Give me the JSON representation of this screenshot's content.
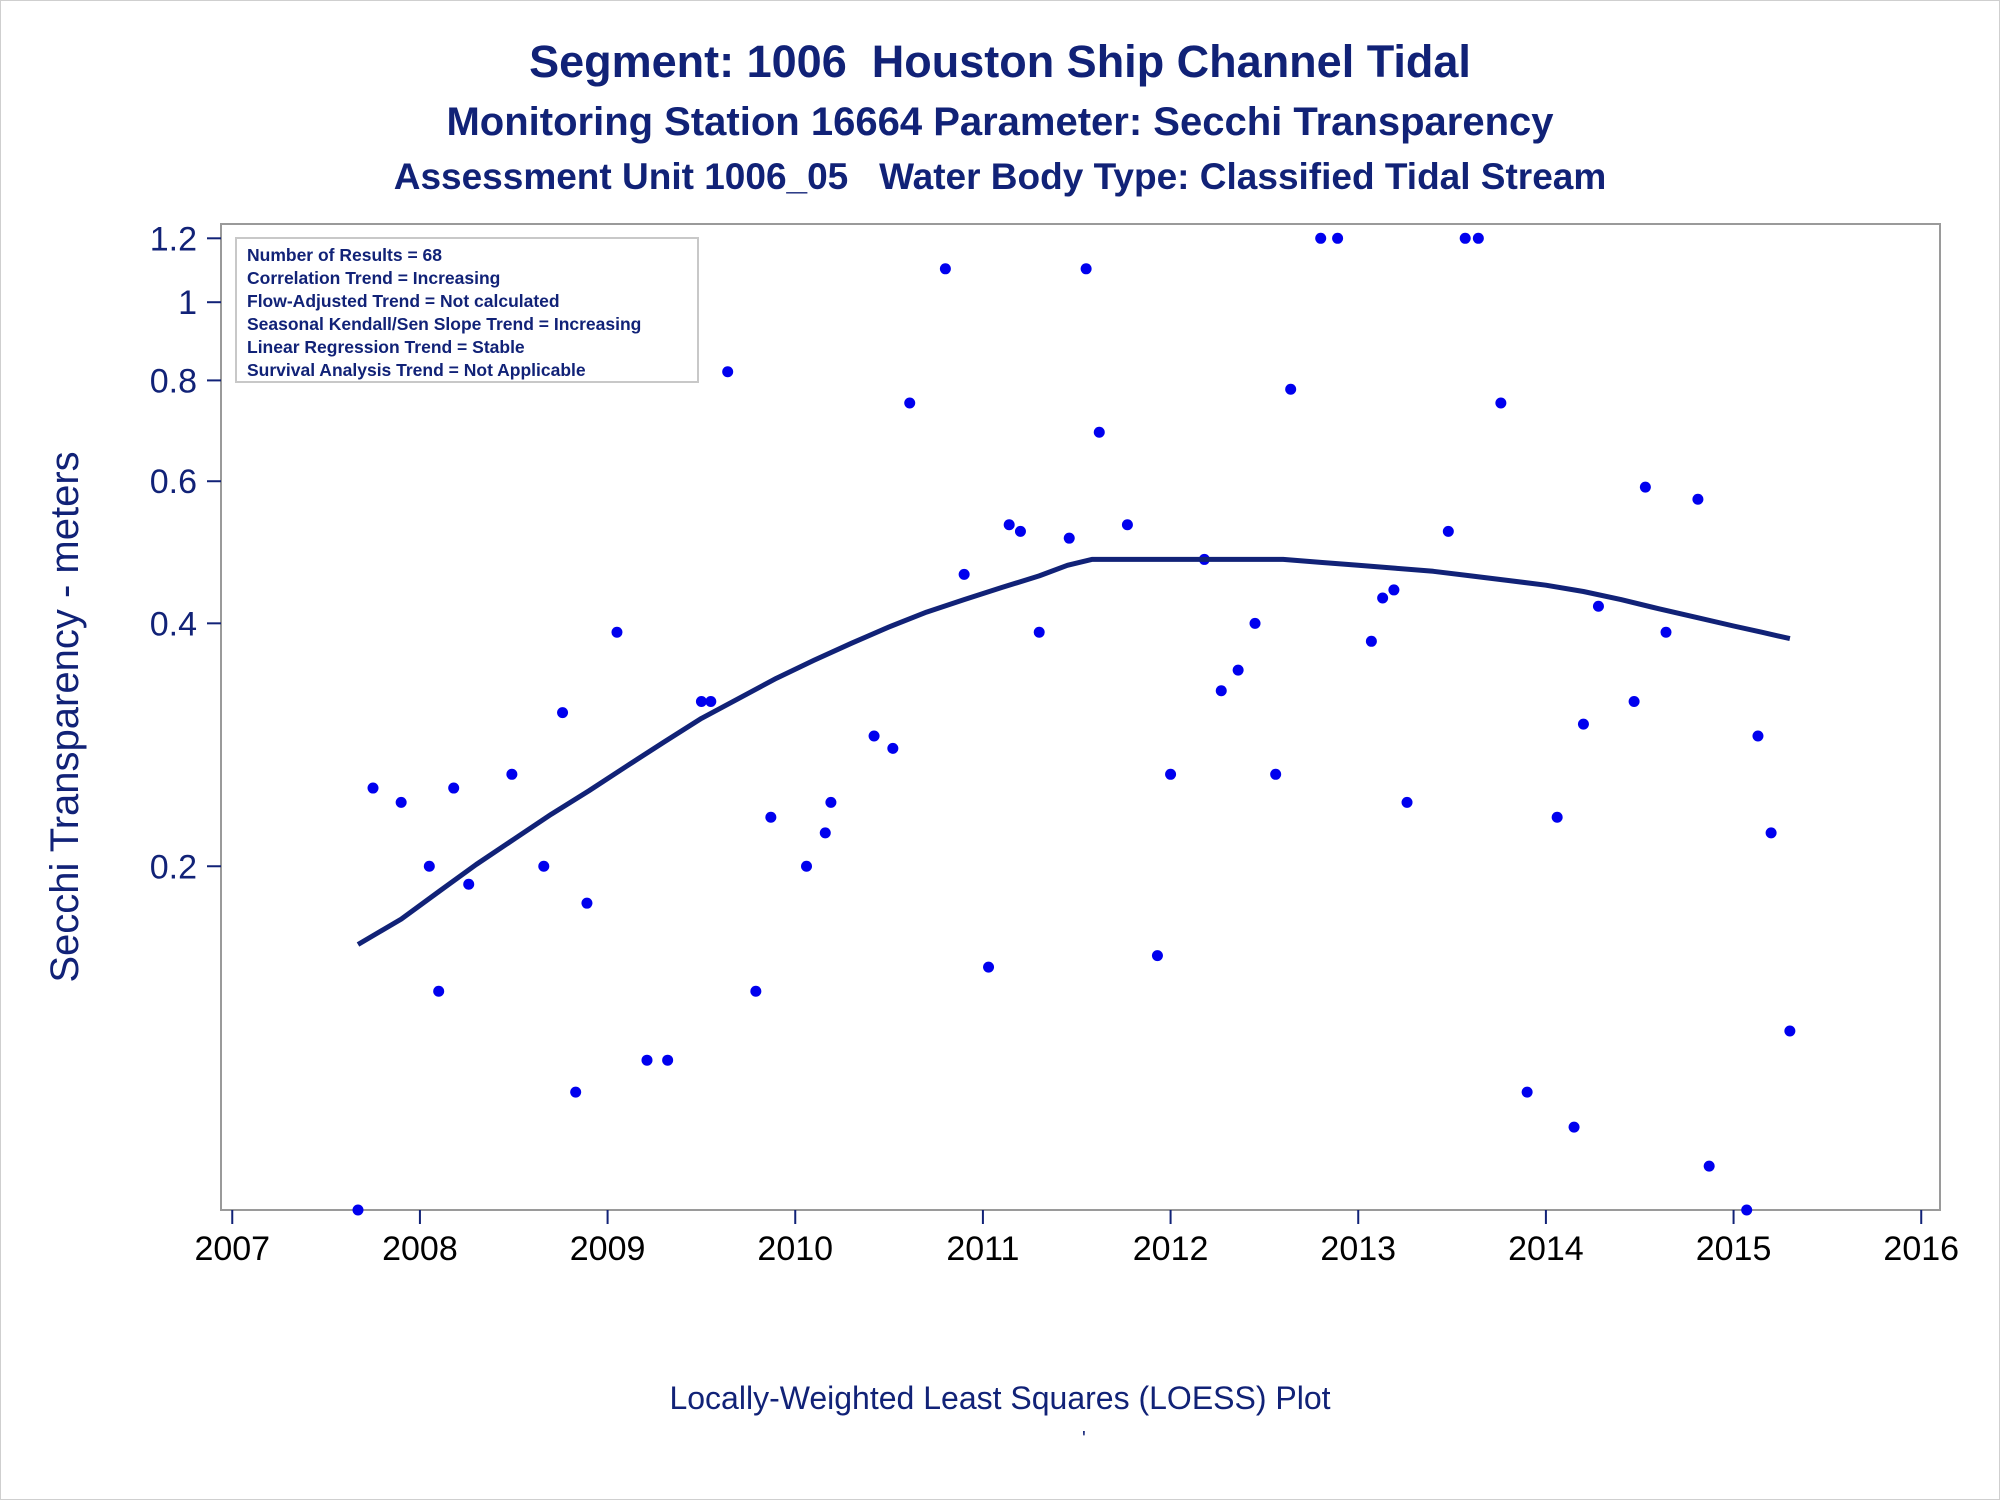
{
  "chart_data": {
    "type": "scatter",
    "title": "Segment: 1006  Houston Ship Channel Tidal",
    "subtitle_1": "Monitoring Station 16664 Parameter: Secchi Transparency",
    "subtitle_2": "Assessment Unit 1006_05   Water Body Type: Classified Tidal Stream",
    "ylabel": "Secchi Transparency - meters",
    "footnote": "Locally-Weighted Least Squares (LOESS) Plot",
    "footnote_mark": "'",
    "y_scale": "log",
    "ylim": [
      0.075,
      1.25
    ],
    "xlim": [
      2006.94,
      2016.1
    ],
    "x_ticks": [
      2007,
      2008,
      2009,
      2010,
      2011,
      2012,
      2013,
      2014,
      2015,
      2016
    ],
    "y_ticks": [
      0.2,
      0.4,
      0.6,
      0.8,
      1,
      1.2
    ],
    "y_tick_labels": [
      "0.2",
      "0.4",
      "0.6",
      "0.8",
      "1",
      "1.2"
    ],
    "grid": false,
    "legend_box": {
      "placement": "top-left",
      "lines": [
        "Number of Results = 68",
        "Correlation Trend = Increasing",
        "Flow-Adjusted Trend = Not calculated",
        "Seasonal Kendall/Sen Slope Trend = Increasing",
        "Linear Regression Trend = Stable",
        "Survival Analysis Trend = Not Applicable"
      ]
    },
    "series": [
      {
        "kind": "points",
        "color": "#0000ee",
        "points": [
          [
            2007.67,
            0.075
          ],
          [
            2007.75,
            0.25
          ],
          [
            2007.9,
            0.24
          ],
          [
            2008.05,
            0.2
          ],
          [
            2008.1,
            0.14
          ],
          [
            2008.18,
            0.25
          ],
          [
            2008.26,
            0.19
          ],
          [
            2008.49,
            0.26
          ],
          [
            2008.66,
            0.2
          ],
          [
            2008.76,
            0.31
          ],
          [
            2008.83,
            0.105
          ],
          [
            2008.89,
            0.18
          ],
          [
            2009.05,
            0.39
          ],
          [
            2009.21,
            0.115
          ],
          [
            2009.32,
            0.115
          ],
          [
            2009.5,
            0.32
          ],
          [
            2009.55,
            0.32
          ],
          [
            2009.64,
            0.82
          ],
          [
            2009.79,
            0.14
          ],
          [
            2009.87,
            0.23
          ],
          [
            2010.06,
            0.2
          ],
          [
            2010.16,
            0.22
          ],
          [
            2010.19,
            0.24
          ],
          [
            2010.42,
            0.29
          ],
          [
            2010.52,
            0.28
          ],
          [
            2010.61,
            0.75
          ],
          [
            2010.8,
            1.1
          ],
          [
            2010.9,
            0.46
          ],
          [
            2011.03,
            0.15
          ],
          [
            2011.14,
            0.53
          ],
          [
            2011.2,
            0.52
          ],
          [
            2011.3,
            0.39
          ],
          [
            2011.46,
            0.51
          ],
          [
            2011.55,
            1.1
          ],
          [
            2011.62,
            0.69
          ],
          [
            2011.77,
            0.53
          ],
          [
            2011.93,
            0.155
          ],
          [
            2012.0,
            0.26
          ],
          [
            2012.18,
            0.48
          ],
          [
            2012.27,
            0.33
          ],
          [
            2012.36,
            0.35
          ],
          [
            2012.45,
            0.4
          ],
          [
            2012.56,
            0.26
          ],
          [
            2012.64,
            0.78
          ],
          [
            2012.8,
            1.2
          ],
          [
            2012.89,
            1.2
          ],
          [
            2013.07,
            0.38
          ],
          [
            2013.13,
            0.43
          ],
          [
            2013.19,
            0.44
          ],
          [
            2013.26,
            0.24
          ],
          [
            2013.48,
            0.52
          ],
          [
            2013.57,
            1.2
          ],
          [
            2013.64,
            1.2
          ],
          [
            2013.76,
            0.75
          ],
          [
            2013.9,
            0.105
          ],
          [
            2014.06,
            0.23
          ],
          [
            2014.15,
            0.095
          ],
          [
            2014.2,
            0.3
          ],
          [
            2014.28,
            0.42
          ],
          [
            2014.47,
            0.32
          ],
          [
            2014.53,
            0.59
          ],
          [
            2014.64,
            0.39
          ],
          [
            2014.81,
            0.57
          ],
          [
            2014.87,
            0.085
          ],
          [
            2015.07,
            0.075
          ],
          [
            2015.13,
            0.29
          ],
          [
            2015.2,
            0.22
          ],
          [
            2015.3,
            0.125
          ]
        ]
      },
      {
        "kind": "loess",
        "color": "#112277",
        "points": [
          [
            2007.67,
            0.16
          ],
          [
            2007.9,
            0.172
          ],
          [
            2008.1,
            0.186
          ],
          [
            2008.3,
            0.201
          ],
          [
            2008.5,
            0.216
          ],
          [
            2008.7,
            0.232
          ],
          [
            2008.9,
            0.248
          ],
          [
            2009.1,
            0.266
          ],
          [
            2009.3,
            0.285
          ],
          [
            2009.5,
            0.305
          ],
          [
            2009.7,
            0.323
          ],
          [
            2009.9,
            0.342
          ],
          [
            2010.1,
            0.36
          ],
          [
            2010.3,
            0.378
          ],
          [
            2010.5,
            0.396
          ],
          [
            2010.7,
            0.413
          ],
          [
            2010.9,
            0.428
          ],
          [
            2011.1,
            0.443
          ],
          [
            2011.3,
            0.458
          ],
          [
            2011.45,
            0.472
          ],
          [
            2011.58,
            0.48
          ],
          [
            2011.8,
            0.48
          ],
          [
            2012.0,
            0.48
          ],
          [
            2012.3,
            0.48
          ],
          [
            2012.6,
            0.48
          ],
          [
            2012.8,
            0.476
          ],
          [
            2013.0,
            0.472
          ],
          [
            2013.2,
            0.468
          ],
          [
            2013.4,
            0.464
          ],
          [
            2013.6,
            0.458
          ],
          [
            2013.8,
            0.452
          ],
          [
            2014.0,
            0.446
          ],
          [
            2014.2,
            0.438
          ],
          [
            2014.4,
            0.428
          ],
          [
            2014.6,
            0.417
          ],
          [
            2014.8,
            0.407
          ],
          [
            2015.0,
            0.397
          ],
          [
            2015.15,
            0.39
          ],
          [
            2015.3,
            0.383
          ]
        ]
      }
    ]
  }
}
